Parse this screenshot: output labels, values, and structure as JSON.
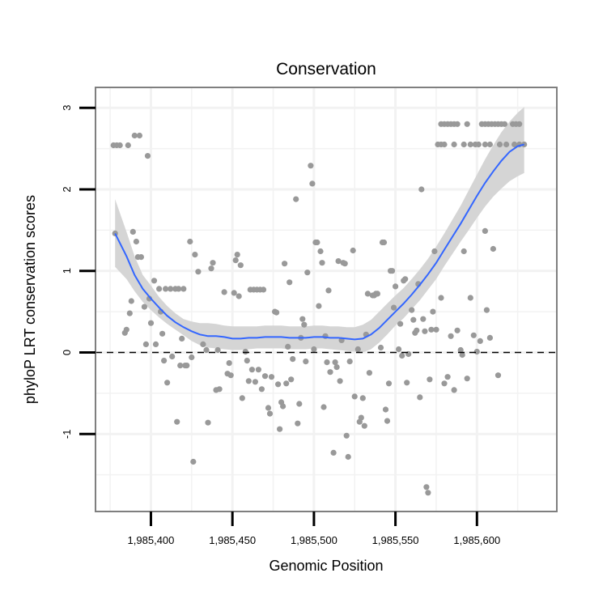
{
  "chart_data": {
    "type": "scatter",
    "title": "Conservation",
    "xlabel": "Genomic Position",
    "ylabel": "phyloP LRT conservation scores",
    "xlim": [
      1985366,
      1985649
    ],
    "ylim": [
      -1.95,
      3.25
    ],
    "x_ticks": [
      1985400,
      1985450,
      1985500,
      1985550,
      1985600
    ],
    "x_tick_labels": [
      "1,985,400",
      "1,985,450",
      "1,985,500",
      "1,985,550",
      "1,985,600"
    ],
    "y_ticks": [
      -1,
      0,
      1,
      2,
      3
    ],
    "y_tick_labels": [
      "-1",
      "0",
      "1",
      "2",
      "3"
    ],
    "grid": true,
    "reference_line": {
      "y": 0,
      "style": "dashed"
    },
    "colors": {
      "points": "#999999",
      "smooth": "#3366ff",
      "ribbon": "#d3d3d3",
      "panel_border": "#7f7f7f",
      "grid": "#f2f2f2"
    },
    "points": [
      [
        1985377,
        2.54
      ],
      [
        1985379,
        2.54
      ],
      [
        1985381,
        2.54
      ],
      [
        1985386,
        2.54
      ],
      [
        1985390,
        2.66
      ],
      [
        1985393,
        2.66
      ],
      [
        1985398,
        2.41
      ],
      [
        1985378,
        1.46
      ],
      [
        1985389,
        1.48
      ],
      [
        1985391,
        1.36
      ],
      [
        1985392,
        1.17
      ],
      [
        1985394,
        1.17
      ],
      [
        1985402,
        0.88
      ],
      [
        1985405,
        0.78
      ],
      [
        1985409,
        0.78
      ],
      [
        1985412,
        0.78
      ],
      [
        1985415,
        0.78
      ],
      [
        1985417,
        0.78
      ],
      [
        1985420,
        0.78
      ],
      [
        1985384,
        0.24
      ],
      [
        1985385,
        0.28
      ],
      [
        1985387,
        0.48
      ],
      [
        1985388,
        0.63
      ],
      [
        1985396,
        0.56
      ],
      [
        1985397,
        0.1
      ],
      [
        1985399,
        0.66
      ],
      [
        1985400,
        0.36
      ],
      [
        1985403,
        0.1
      ],
      [
        1985406,
        0.5
      ],
      [
        1985407,
        0.23
      ],
      [
        1985408,
        -0.1
      ],
      [
        1985410,
        -0.37
      ],
      [
        1985413,
        -0.05
      ],
      [
        1985416,
        -0.85
      ],
      [
        1985418,
        -0.16
      ],
      [
        1985419,
        0.17
      ],
      [
        1985421,
        -0.16
      ],
      [
        1985422,
        -0.16
      ],
      [
        1985424,
        1.36
      ],
      [
        1985425,
        -0.06
      ],
      [
        1985426,
        -1.34
      ],
      [
        1985427,
        1.2
      ],
      [
        1985429,
        0.99
      ],
      [
        1985432,
        0.1
      ],
      [
        1985434,
        0.03
      ],
      [
        1985435,
        -0.86
      ],
      [
        1985437,
        1.03
      ],
      [
        1985438,
        1.1
      ],
      [
        1985440,
        -0.46
      ],
      [
        1985441,
        0.03
      ],
      [
        1985442,
        -0.45
      ],
      [
        1985445,
        0.74
      ],
      [
        1985447,
        -0.26
      ],
      [
        1985448,
        -0.13
      ],
      [
        1985449,
        -0.28
      ],
      [
        1985451,
        0.73
      ],
      [
        1985452,
        1.13
      ],
      [
        1985453,
        1.2
      ],
      [
        1985454,
        0.69
      ],
      [
        1985455,
        1.07
      ],
      [
        1985456,
        -0.56
      ],
      [
        1985458,
        0.01
      ],
      [
        1985459,
        -0.1
      ],
      [
        1985461,
        0.77
      ],
      [
        1985463,
        0.77
      ],
      [
        1985465,
        0.77
      ],
      [
        1985467,
        0.77
      ],
      [
        1985469,
        0.77
      ],
      [
        1985460,
        -0.35
      ],
      [
        1985462,
        -0.21
      ],
      [
        1985464,
        -0.36
      ],
      [
        1985466,
        -0.21
      ],
      [
        1985468,
        -0.45
      ],
      [
        1985470,
        -0.29
      ],
      [
        1985472,
        -0.68
      ],
      [
        1985473,
        -0.75
      ],
      [
        1985474,
        -0.3
      ],
      [
        1985476,
        0.5
      ],
      [
        1985477,
        0.49
      ],
      [
        1985478,
        -0.39
      ],
      [
        1985479,
        -0.94
      ],
      [
        1985480,
        -0.61
      ],
      [
        1985481,
        -0.66
      ],
      [
        1985482,
        1.09
      ],
      [
        1985483,
        -0.38
      ],
      [
        1985484,
        0.07
      ],
      [
        1985485,
        0.86
      ],
      [
        1985486,
        -0.33
      ],
      [
        1985487,
        -0.08
      ],
      [
        1985489,
        1.88
      ],
      [
        1985490,
        -0.87
      ],
      [
        1985491,
        -0.63
      ],
      [
        1985492,
        0.18
      ],
      [
        1985493,
        0.41
      ],
      [
        1985494,
        0.34
      ],
      [
        1985495,
        -0.11
      ],
      [
        1985496,
        0.98
      ],
      [
        1985498,
        2.29
      ],
      [
        1985499,
        2.07
      ],
      [
        1985500,
        0.04
      ],
      [
        1985501,
        1.35
      ],
      [
        1985502,
        1.35
      ],
      [
        1985503,
        0.57
      ],
      [
        1985504,
        1.24
      ],
      [
        1985505,
        1.1
      ],
      [
        1985506,
        -0.67
      ],
      [
        1985507,
        0.2
      ],
      [
        1985508,
        -0.12
      ],
      [
        1985509,
        0.76
      ],
      [
        1985510,
        -0.24
      ],
      [
        1985512,
        -1.23
      ],
      [
        1985513,
        -0.12
      ],
      [
        1985514,
        -0.18
      ],
      [
        1985515,
        1.12
      ],
      [
        1985516,
        -0.35
      ],
      [
        1985517,
        0.15
      ],
      [
        1985518,
        1.1
      ],
      [
        1985519,
        1.09
      ],
      [
        1985520,
        -1.02
      ],
      [
        1985521,
        -1.28
      ],
      [
        1985522,
        -0.11
      ],
      [
        1985524,
        1.25
      ],
      [
        1985525,
        -0.54
      ],
      [
        1985527,
        0.04
      ],
      [
        1985528,
        -0.85
      ],
      [
        1985529,
        -0.8
      ],
      [
        1985530,
        -0.56
      ],
      [
        1985531,
        -0.9
      ],
      [
        1985532,
        0.22
      ],
      [
        1985533,
        0.72
      ],
      [
        1985534,
        -0.25
      ],
      [
        1985536,
        0.7
      ],
      [
        1985537,
        0.7
      ],
      [
        1985538,
        0.72
      ],
      [
        1985539,
        0.72
      ],
      [
        1985541,
        0.06
      ],
      [
        1985542,
        1.35
      ],
      [
        1985543,
        1.35
      ],
      [
        1985544,
        -0.7
      ],
      [
        1985545,
        -0.84
      ],
      [
        1985546,
        -0.38
      ],
      [
        1985547,
        1.0
      ],
      [
        1985548,
        1.0
      ],
      [
        1985549,
        0.55
      ],
      [
        1985550,
        0.81
      ],
      [
        1985552,
        0.04
      ],
      [
        1985553,
        0.35
      ],
      [
        1985554,
        -0.04
      ],
      [
        1985555,
        0.88
      ],
      [
        1985556,
        0.9
      ],
      [
        1985557,
        -0.37
      ],
      [
        1985558,
        -0.02
      ],
      [
        1985560,
        0.52
      ],
      [
        1985561,
        0.4
      ],
      [
        1985562,
        0.24
      ],
      [
        1985563,
        0.27
      ],
      [
        1985564,
        0.84
      ],
      [
        1985565,
        -0.55
      ],
      [
        1985566,
        2.0
      ],
      [
        1985567,
        0.41
      ],
      [
        1985568,
        0.26
      ],
      [
        1985569,
        -1.65
      ],
      [
        1985570,
        -1.72
      ],
      [
        1985571,
        -0.33
      ],
      [
        1985572,
        0.28
      ],
      [
        1985573,
        0.5
      ],
      [
        1985574,
        1.24
      ],
      [
        1985576,
        2.55
      ],
      [
        1985578,
        2.55
      ],
      [
        1985580,
        2.55
      ],
      [
        1985586,
        2.55
      ],
      [
        1985592,
        2.55
      ],
      [
        1985596,
        2.55
      ],
      [
        1985599,
        2.55
      ],
      [
        1985601,
        2.55
      ],
      [
        1985605,
        2.55
      ],
      [
        1985608,
        2.55
      ],
      [
        1985614,
        2.55
      ],
      [
        1985618,
        2.55
      ],
      [
        1985623,
        2.55
      ],
      [
        1985626,
        2.55
      ],
      [
        1985629,
        2.55
      ],
      [
        1985578,
        2.8
      ],
      [
        1985580,
        2.8
      ],
      [
        1985582,
        2.8
      ],
      [
        1985584,
        2.8
      ],
      [
        1985586,
        2.8
      ],
      [
        1985588,
        2.8
      ],
      [
        1985594,
        2.8
      ],
      [
        1985603,
        2.8
      ],
      [
        1985605,
        2.8
      ],
      [
        1985607,
        2.8
      ],
      [
        1985609,
        2.8
      ],
      [
        1985611,
        2.8
      ],
      [
        1985613,
        2.8
      ],
      [
        1985615,
        2.8
      ],
      [
        1985617,
        2.8
      ],
      [
        1985622,
        2.8
      ],
      [
        1985624,
        2.8
      ],
      [
        1985626,
        2.8
      ],
      [
        1985575,
        0.28
      ],
      [
        1985578,
        0.67
      ],
      [
        1985580,
        -0.38
      ],
      [
        1985582,
        -0.3
      ],
      [
        1985584,
        0.2
      ],
      [
        1985586,
        -0.46
      ],
      [
        1985588,
        0.27
      ],
      [
        1985590,
        0.03
      ],
      [
        1985591,
        -0.03
      ],
      [
        1985592,
        1.24
      ],
      [
        1985594,
        -0.32
      ],
      [
        1985596,
        0.67
      ],
      [
        1985598,
        0.21
      ],
      [
        1985600,
        0.01
      ],
      [
        1985602,
        0.14
      ],
      [
        1985605,
        1.49
      ],
      [
        1985606,
        0.52
      ],
      [
        1985608,
        0.18
      ],
      [
        1985610,
        1.27
      ],
      [
        1985613,
        -0.28
      ]
    ],
    "smooth": [
      [
        1985378,
        1.46
      ],
      [
        1985385,
        1.18
      ],
      [
        1985390,
        0.95
      ],
      [
        1985395,
        0.78
      ],
      [
        1985400,
        0.66
      ],
      [
        1985405,
        0.55
      ],
      [
        1985410,
        0.45
      ],
      [
        1985415,
        0.37
      ],
      [
        1985420,
        0.31
      ],
      [
        1985425,
        0.26
      ],
      [
        1985430,
        0.22
      ],
      [
        1985435,
        0.2
      ],
      [
        1985440,
        0.2
      ],
      [
        1985445,
        0.19
      ],
      [
        1985450,
        0.17
      ],
      [
        1985455,
        0.17
      ],
      [
        1985460,
        0.18
      ],
      [
        1985465,
        0.18
      ],
      [
        1985470,
        0.19
      ],
      [
        1985475,
        0.19
      ],
      [
        1985480,
        0.19
      ],
      [
        1985485,
        0.18
      ],
      [
        1985490,
        0.18
      ],
      [
        1985495,
        0.18
      ],
      [
        1985500,
        0.19
      ],
      [
        1985505,
        0.19
      ],
      [
        1985510,
        0.18
      ],
      [
        1985515,
        0.18
      ],
      [
        1985520,
        0.17
      ],
      [
        1985525,
        0.16
      ],
      [
        1985530,
        0.17
      ],
      [
        1985535,
        0.22
      ],
      [
        1985540,
        0.3
      ],
      [
        1985545,
        0.4
      ],
      [
        1985550,
        0.5
      ],
      [
        1985555,
        0.6
      ],
      [
        1985560,
        0.71
      ],
      [
        1985565,
        0.83
      ],
      [
        1985570,
        0.96
      ],
      [
        1985575,
        1.1
      ],
      [
        1985580,
        1.26
      ],
      [
        1985585,
        1.42
      ],
      [
        1985590,
        1.58
      ],
      [
        1985595,
        1.75
      ],
      [
        1985600,
        1.92
      ],
      [
        1985605,
        2.08
      ],
      [
        1985610,
        2.22
      ],
      [
        1985615,
        2.35
      ],
      [
        1985620,
        2.46
      ],
      [
        1985625,
        2.53
      ],
      [
        1985629,
        2.55
      ]
    ],
    "ribbon": [
      [
        1985378,
        1.05,
        1.88
      ],
      [
        1985385,
        0.9,
        1.48
      ],
      [
        1985390,
        0.75,
        1.18
      ],
      [
        1985395,
        0.62,
        0.95
      ],
      [
        1985400,
        0.52,
        0.82
      ],
      [
        1985405,
        0.43,
        0.68
      ],
      [
        1985410,
        0.35,
        0.57
      ],
      [
        1985415,
        0.28,
        0.48
      ],
      [
        1985420,
        0.21,
        0.41
      ],
      [
        1985425,
        0.14,
        0.38
      ],
      [
        1985430,
        0.09,
        0.36
      ],
      [
        1985435,
        0.06,
        0.36
      ],
      [
        1985440,
        0.05,
        0.35
      ],
      [
        1985445,
        0.04,
        0.33
      ],
      [
        1985450,
        0.03,
        0.32
      ],
      [
        1985455,
        0.03,
        0.32
      ],
      [
        1985460,
        0.04,
        0.32
      ],
      [
        1985465,
        0.05,
        0.32
      ],
      [
        1985470,
        0.05,
        0.33
      ],
      [
        1985475,
        0.05,
        0.33
      ],
      [
        1985480,
        0.05,
        0.33
      ],
      [
        1985485,
        0.04,
        0.32
      ],
      [
        1985490,
        0.04,
        0.32
      ],
      [
        1985495,
        0.04,
        0.32
      ],
      [
        1985500,
        0.05,
        0.33
      ],
      [
        1985505,
        0.05,
        0.33
      ],
      [
        1985510,
        0.04,
        0.32
      ],
      [
        1985515,
        0.03,
        0.32
      ],
      [
        1985520,
        0.02,
        0.31
      ],
      [
        1985525,
        0.01,
        0.31
      ],
      [
        1985530,
        0.0,
        0.34
      ],
      [
        1985535,
        0.04,
        0.4
      ],
      [
        1985540,
        0.12,
        0.5
      ],
      [
        1985545,
        0.22,
        0.6
      ],
      [
        1985550,
        0.33,
        0.7
      ],
      [
        1985555,
        0.42,
        0.79
      ],
      [
        1985560,
        0.53,
        0.9
      ],
      [
        1985565,
        0.64,
        1.02
      ],
      [
        1985570,
        0.77,
        1.15
      ],
      [
        1985575,
        0.9,
        1.3
      ],
      [
        1985580,
        1.06,
        1.46
      ],
      [
        1985585,
        1.21,
        1.63
      ],
      [
        1985590,
        1.36,
        1.8
      ],
      [
        1985595,
        1.5,
        1.99
      ],
      [
        1985600,
        1.65,
        2.18
      ],
      [
        1985605,
        1.79,
        2.37
      ],
      [
        1985610,
        1.91,
        2.54
      ],
      [
        1985615,
        2.01,
        2.7
      ],
      [
        1985620,
        2.1,
        2.83
      ],
      [
        1985625,
        2.16,
        2.94
      ],
      [
        1985629,
        2.2,
        3.01
      ]
    ]
  }
}
